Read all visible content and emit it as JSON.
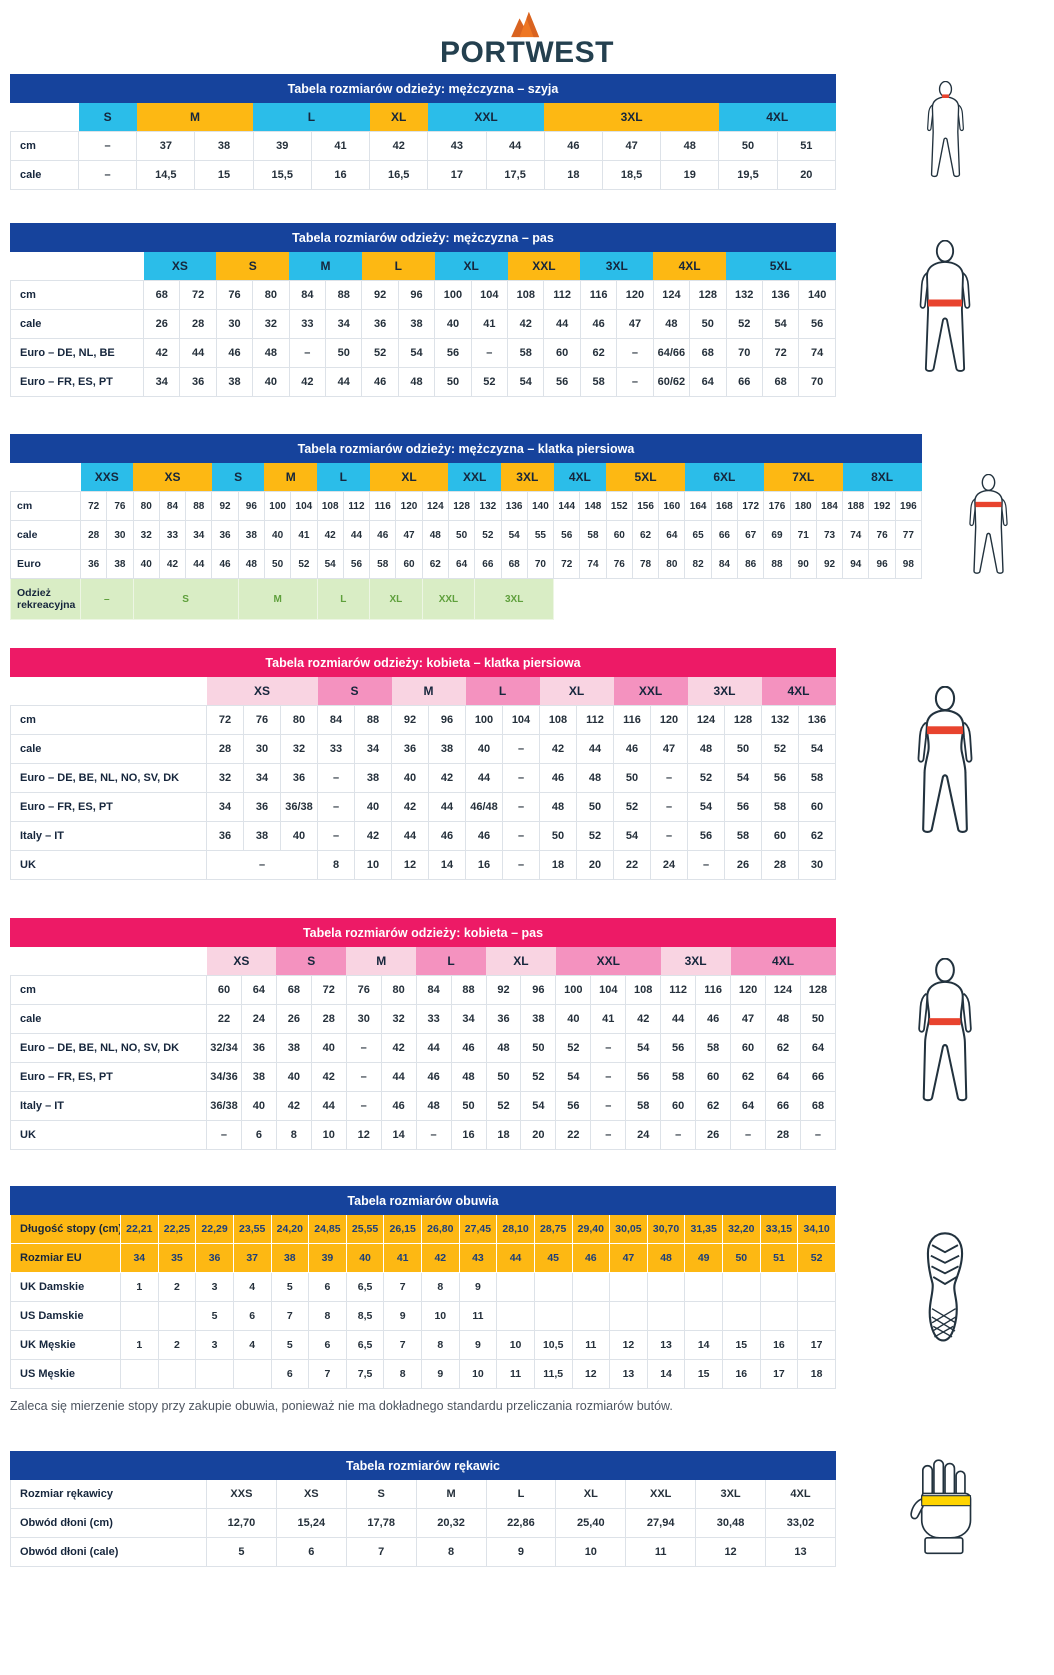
{
  "logo": {
    "brand": "PORTWEST"
  },
  "palette": {
    "blue": "#16439c",
    "cyan": "#2bbde9",
    "orange": "#fdb813",
    "pink": "#ed1a66",
    "pink_light": "#f9d4e2",
    "pink_mid": "#f492bf",
    "green_bg": "#d9edc5",
    "green_tx": "#5fa03c",
    "red": "#e8432e",
    "yellow": "#ffd400"
  },
  "footnote": "Zaleca się mierzenie stopy przy zakupie obuwia, ponieważ nie ma dokładnego standardu przeliczania rozmiarów butów.",
  "tables": [
    {
      "id": "men-neck",
      "title": "Tabela rozmiarów odzieży: mężczyzna – szyja",
      "theme": "blue",
      "cols": 13,
      "sizes": [
        {
          "label": "S",
          "span": 1,
          "color": "c"
        },
        {
          "label": "M",
          "span": 2,
          "color": "o"
        },
        {
          "label": "L",
          "span": 2,
          "color": "c"
        },
        {
          "label": "XL",
          "span": 1,
          "color": "o"
        },
        {
          "label": "XXL",
          "span": 2,
          "color": "c"
        },
        {
          "label": "3XL",
          "span": 3,
          "color": "o"
        },
        {
          "label": "4XL",
          "span": 2,
          "color": "c"
        }
      ],
      "rows": [
        {
          "label": "cm",
          "cells": [
            "–",
            "37",
            "38",
            "39",
            "41",
            "42",
            "43",
            "44",
            "46",
            "47",
            "48",
            "50",
            "51"
          ]
        },
        {
          "label": "cale",
          "cells": [
            "–",
            "14,5",
            "15",
            "15,5",
            "16",
            "16,5",
            "17",
            "17,5",
            "18",
            "18,5",
            "19",
            "19,5",
            "20"
          ]
        }
      ]
    },
    {
      "id": "men-waist",
      "title": "Tabela rozmiarów odzieży: mężczyzna – pas",
      "theme": "blue",
      "cols": 19,
      "sizes": [
        {
          "label": "XS",
          "span": 2,
          "color": "c"
        },
        {
          "label": "S",
          "span": 2,
          "color": "o"
        },
        {
          "label": "M",
          "span": 2,
          "color": "c"
        },
        {
          "label": "L",
          "span": 2,
          "color": "o"
        },
        {
          "label": "XL",
          "span": 2,
          "color": "c"
        },
        {
          "label": "XXL",
          "span": 2,
          "color": "o"
        },
        {
          "label": "3XL",
          "span": 2,
          "color": "c"
        },
        {
          "label": "4XL",
          "span": 2,
          "color": "o"
        },
        {
          "label": "5XL",
          "span": 3,
          "color": "c"
        }
      ],
      "rows": [
        {
          "label": "cm",
          "cells": [
            "68",
            "72",
            "76",
            "80",
            "84",
            "88",
            "92",
            "96",
            "100",
            "104",
            "108",
            "112",
            "116",
            "120",
            "124",
            "128",
            "132",
            "136",
            "140"
          ]
        },
        {
          "label": "cale",
          "cells": [
            "26",
            "28",
            "30",
            "32",
            "33",
            "34",
            "36",
            "38",
            "40",
            "41",
            "42",
            "44",
            "46",
            "47",
            "48",
            "50",
            "52",
            "54",
            "56"
          ]
        },
        {
          "label": "Euro – DE, NL, BE",
          "cells": [
            "42",
            "44",
            "46",
            "48",
            "–",
            "50",
            "52",
            "54",
            "56",
            "–",
            "58",
            "60",
            "62",
            "–",
            "64/66",
            "68",
            "70",
            "72",
            "74"
          ]
        },
        {
          "label": "Euro – FR, ES, PT",
          "cells": [
            "34",
            "36",
            "38",
            "40",
            "42",
            "44",
            "46",
            "48",
            "50",
            "52",
            "54",
            "56",
            "58",
            "–",
            "60/62",
            "64",
            "66",
            "68",
            "70"
          ]
        }
      ]
    },
    {
      "id": "men-chest",
      "title": "Tabela rozmiarów odzieży: mężczyzna – klatka piersiowa",
      "theme": "blue",
      "cols": 32,
      "sizes": [
        {
          "label": "XXS",
          "span": 2,
          "color": "c"
        },
        {
          "label": "XS",
          "span": 3,
          "color": "o"
        },
        {
          "label": "S",
          "span": 2,
          "color": "c"
        },
        {
          "label": "M",
          "span": 2,
          "color": "o"
        },
        {
          "label": "L",
          "span": 2,
          "color": "c"
        },
        {
          "label": "XL",
          "span": 3,
          "color": "o"
        },
        {
          "label": "XXL",
          "span": 2,
          "color": "c"
        },
        {
          "label": "3XL",
          "span": 2,
          "color": "o"
        },
        {
          "label": "4XL",
          "span": 2,
          "color": "c"
        },
        {
          "label": "5XL",
          "span": 3,
          "color": "o"
        },
        {
          "label": "6XL",
          "span": 3,
          "color": "c"
        },
        {
          "label": "7XL",
          "span": 3,
          "color": "o"
        },
        {
          "label": "8XL",
          "span": 3,
          "color": "c"
        }
      ],
      "rows": [
        {
          "label": "cm",
          "cells": [
            "72",
            "76",
            "80",
            "84",
            "88",
            "92",
            "96",
            "100",
            "104",
            "108",
            "112",
            "116",
            "120",
            "124",
            "128",
            "132",
            "136",
            "140",
            "144",
            "148",
            "152",
            "156",
            "160",
            "164",
            "168",
            "172",
            "176",
            "180",
            "184",
            "188",
            "192",
            "196"
          ]
        },
        {
          "label": "cale",
          "cells": [
            "28",
            "30",
            "32",
            "33",
            "34",
            "36",
            "38",
            "40",
            "41",
            "42",
            "44",
            "46",
            "47",
            "48",
            "50",
            "52",
            "54",
            "55",
            "56",
            "58",
            "60",
            "62",
            "64",
            "65",
            "66",
            "67",
            "69",
            "71",
            "73",
            "74",
            "76",
            "77"
          ]
        },
        {
          "label": "Euro",
          "cells": [
            "36",
            "38",
            "40",
            "42",
            "44",
            "46",
            "48",
            "50",
            "52",
            "54",
            "56",
            "58",
            "60",
            "62",
            "64",
            "66",
            "68",
            "70",
            "72",
            "74",
            "76",
            "78",
            "80",
            "82",
            "84",
            "86",
            "88",
            "90",
            "92",
            "94",
            "96",
            "98"
          ]
        },
        {
          "label": "Odzież rekreacyjna",
          "cls": "green",
          "cells": [
            {
              "t": "–",
              "s": 2
            },
            {
              "t": "S",
              "s": 4
            },
            {
              "t": "M",
              "s": 3
            },
            {
              "t": "L",
              "s": 2
            },
            {
              "t": "XL",
              "s": 2
            },
            {
              "t": "XXL",
              "s": 2
            },
            {
              "t": "3XL",
              "s": 3
            },
            {
              "t": "",
              "s": 14,
              "cls": "blank"
            }
          ]
        }
      ]
    },
    {
      "id": "women-chest",
      "title": "Tabela rozmiarów odzieży: kobieta – klatka piersiowa",
      "theme": "pink",
      "cols": 17,
      "sizes": [
        {
          "label": "XS",
          "span": 3,
          "color": "lp"
        },
        {
          "label": "S",
          "span": 2,
          "color": "mp"
        },
        {
          "label": "M",
          "span": 2,
          "color": "lp"
        },
        {
          "label": "L",
          "span": 2,
          "color": "mp"
        },
        {
          "label": "XL",
          "span": 2,
          "color": "lp"
        },
        {
          "label": "XXL",
          "span": 2,
          "color": "mp"
        },
        {
          "label": "3XL",
          "span": 2,
          "color": "lp"
        },
        {
          "label": "4XL",
          "span": 2,
          "color": "mp"
        }
      ],
      "rows": [
        {
          "label": "cm",
          "cells": [
            "72",
            "76",
            "80",
            "84",
            "88",
            "92",
            "96",
            "100",
            "104",
            "108",
            "112",
            "116",
            "120",
            "124",
            "128",
            "132",
            "136"
          ]
        },
        {
          "label": "cale",
          "cells": [
            "28",
            "30",
            "32",
            "33",
            "34",
            "36",
            "38",
            "40",
            "–",
            "42",
            "44",
            "46",
            "47",
            "48",
            "50",
            "52",
            "54"
          ]
        },
        {
          "label": "Euro – DE, BE, NL, NO, SV, DK",
          "cells": [
            "32",
            "34",
            "36",
            "–",
            "38",
            "40",
            "42",
            "44",
            "–",
            "46",
            "48",
            "50",
            "–",
            "52",
            "54",
            "56",
            "58"
          ]
        },
        {
          "label": "Euro – FR, ES, PT",
          "cells": [
            "34",
            "36",
            "36/38",
            "–",
            "40",
            "42",
            "44",
            "46/48",
            "–",
            "48",
            "50",
            "52",
            "–",
            "54",
            "56",
            "58",
            "60"
          ]
        },
        {
          "label": "Italy – IT",
          "cells": [
            "36",
            "38",
            "40",
            "–",
            "42",
            "44",
            "46",
            "46",
            "–",
            "50",
            "52",
            "54",
            "–",
            "56",
            "58",
            "60",
            "62"
          ]
        },
        {
          "label": "UK",
          "cells": [
            {
              "t": "–",
              "s": 3
            },
            "8",
            "10",
            "12",
            "14",
            "16",
            "–",
            "18",
            "20",
            "22",
            "24",
            "–",
            "26",
            "28",
            "30"
          ]
        }
      ]
    },
    {
      "id": "women-waist",
      "title": "Tabela rozmiarów odzieży: kobieta – pas",
      "theme": "pink",
      "cols": 18,
      "sizes": [
        {
          "label": "XS",
          "span": 2,
          "color": "lp"
        },
        {
          "label": "S",
          "span": 2,
          "color": "mp"
        },
        {
          "label": "M",
          "span": 2,
          "color": "lp"
        },
        {
          "label": "L",
          "span": 2,
          "color": "mp"
        },
        {
          "label": "XL",
          "span": 2,
          "color": "lp"
        },
        {
          "label": "XXL",
          "span": 3,
          "color": "mp"
        },
        {
          "label": "3XL",
          "span": 2,
          "color": "lp"
        },
        {
          "label": "4XL",
          "span": 3,
          "color": "mp"
        }
      ],
      "rows": [
        {
          "label": "cm",
          "cells": [
            "60",
            "64",
            "68",
            "72",
            "76",
            "80",
            "84",
            "88",
            "92",
            "96",
            "100",
            "104",
            "108",
            "112",
            "116",
            "120",
            "124",
            "128"
          ]
        },
        {
          "label": "cale",
          "cells": [
            "22",
            "24",
            "26",
            "28",
            "30",
            "32",
            "33",
            "34",
            "36",
            "38",
            "40",
            "41",
            "42",
            "44",
            "46",
            "47",
            "48",
            "50"
          ]
        },
        {
          "label": "Euro – DE, BE, NL, NO, SV, DK",
          "cells": [
            "32/34",
            "36",
            "38",
            "40",
            "–",
            "42",
            "44",
            "46",
            "48",
            "50",
            "52",
            "–",
            "54",
            "56",
            "58",
            "60",
            "62",
            "64"
          ]
        },
        {
          "label": "Euro – FR, ES, PT",
          "cells": [
            "34/36",
            "38",
            "40",
            "42",
            "–",
            "44",
            "46",
            "48",
            "50",
            "52",
            "54",
            "–",
            "56",
            "58",
            "60",
            "62",
            "64",
            "66"
          ]
        },
        {
          "label": "Italy – IT",
          "cells": [
            "36/38",
            "40",
            "42",
            "44",
            "–",
            "46",
            "48",
            "50",
            "52",
            "54",
            "56",
            "–",
            "58",
            "60",
            "62",
            "64",
            "66",
            "68"
          ]
        },
        {
          "label": "UK",
          "cells": [
            "–",
            "6",
            "8",
            "10",
            "12",
            "14",
            "–",
            "16",
            "18",
            "20",
            "22",
            "–",
            "24",
            "–",
            "26",
            "–",
            "28",
            "–"
          ]
        }
      ]
    },
    {
      "id": "footwear",
      "title": "Tabela rozmiarów obuwia",
      "theme": "blue",
      "cols": 19,
      "rows": [
        {
          "label": "Długość stopy (cm)",
          "cls": "orange",
          "cells": [
            "22,21",
            "22,25",
            "22,29",
            "23,55",
            "24,20",
            "24,85",
            "25,55",
            "26,15",
            "26,80",
            "27,45",
            "28,10",
            "28,75",
            "29,40",
            "30,05",
            "30,70",
            "31,35",
            "32,20",
            "33,15",
            "34,10"
          ]
        },
        {
          "label": "Rozmiar EU",
          "cls": "orange",
          "cells": [
            "34",
            "35",
            "36",
            "37",
            "38",
            "39",
            "40",
            "41",
            "42",
            "43",
            "44",
            "45",
            "46",
            "47",
            "48",
            "49",
            "50",
            "51",
            "52"
          ]
        },
        {
          "label": "UK Damskie",
          "cells": [
            "1",
            "2",
            "3",
            "4",
            "5",
            "6",
            "6,5",
            "7",
            "8",
            "9",
            "",
            "",
            "",
            "",
            "",
            "",
            "",
            "",
            ""
          ]
        },
        {
          "label": "US Damskie",
          "cells": [
            "",
            "",
            "5",
            "6",
            "7",
            "8",
            "8,5",
            "9",
            "10",
            "11",
            "",
            "",
            "",
            "",
            "",
            "",
            "",
            "",
            ""
          ]
        },
        {
          "label": "UK Męskie",
          "cells": [
            "1",
            "2",
            "3",
            "4",
            "5",
            "6",
            "6,5",
            "7",
            "8",
            "9",
            "10",
            "10,5",
            "11",
            "12",
            "13",
            "14",
            "15",
            "16",
            "17"
          ]
        },
        {
          "label": "US Męskie",
          "cells": [
            "",
            "",
            "",
            "",
            "6",
            "7",
            "7,5",
            "8",
            "9",
            "10",
            "11",
            "11,5",
            "12",
            "13",
            "14",
            "15",
            "16",
            "17",
            "18"
          ]
        }
      ]
    },
    {
      "id": "gloves",
      "title": "Tabela rozmiarów rękawic",
      "theme": "blue",
      "cols": 9,
      "rows": [
        {
          "label": "Rozmiar rękawicy",
          "cells": [
            "XXS",
            "XS",
            "S",
            "M",
            "L",
            "XL",
            "XXL",
            "3XL",
            "4XL"
          ]
        },
        {
          "label": "Obwód dłoni (cm)",
          "cells": [
            "12,70",
            "15,24",
            "17,78",
            "20,32",
            "22,86",
            "25,40",
            "27,94",
            "30,48",
            "33,02"
          ]
        },
        {
          "label": "Obwód dłoni (cale)",
          "cells": [
            "5",
            "6",
            "7",
            "8",
            "9",
            "10",
            "11",
            "12",
            "13"
          ]
        }
      ]
    }
  ]
}
